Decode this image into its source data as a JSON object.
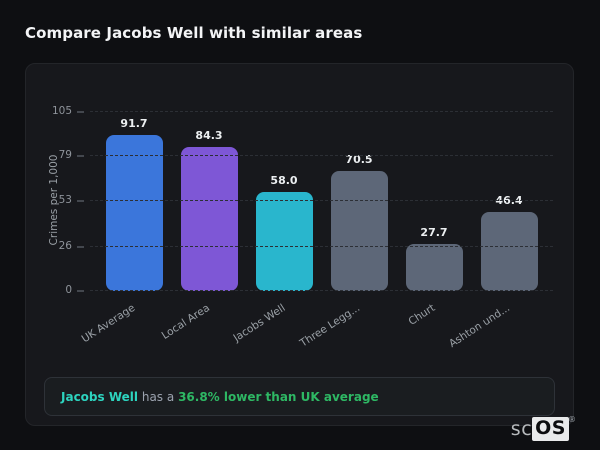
{
  "page": {
    "title": "Compare Jacobs Well with similar areas"
  },
  "chart_data": {
    "type": "bar",
    "title": "Compare Jacobs Well with similar areas",
    "ylabel": "Crimes per 1,000",
    "xlabel": "",
    "categories": [
      "UK Average",
      "Local Area",
      "Jacobs Well",
      "Three Legg...",
      "Churt",
      "Ashton und..."
    ],
    "values": [
      91.7,
      84.3,
      58.0,
      70.5,
      27.7,
      46.4
    ],
    "value_labels": [
      "91.7",
      "84.3",
      "58.0",
      "70.5",
      "27.7",
      "46.4"
    ],
    "bar_colors": [
      "#3b76db",
      "#7e57d6",
      "#29b6cd",
      "#5d6778",
      "#5d6778",
      "#5d6778"
    ],
    "yticks": [
      0,
      26,
      53,
      79,
      105
    ],
    "ylim": [
      0,
      105
    ],
    "grid": "horizontal-dashed",
    "legend": "none"
  },
  "note": {
    "area_label": "Jacobs Well",
    "connector": "has a",
    "stat_text": "36.8% lower than UK average",
    "area_color": "#2dd4bf",
    "stat_color": "#2eb864"
  },
  "logo": {
    "prefix": "sc",
    "suffix": "OS",
    "registered": "®"
  },
  "colors": {
    "page_bg": "#0e0f12",
    "card_bg": "#17181c",
    "card_border": "#232529",
    "note_bg": "#1a1d20",
    "note_border": "#2e3238",
    "text_primary": "#f3f4f6",
    "text_muted": "#9aa0a6",
    "gridline": "#2c2f35"
  }
}
